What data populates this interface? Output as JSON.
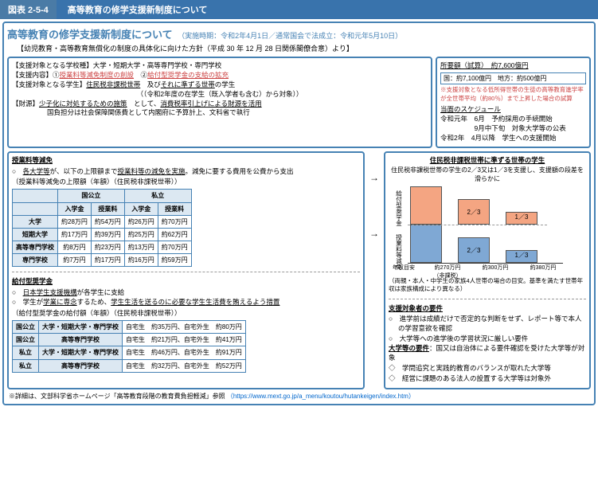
{
  "header": {
    "num": "図表 2-5-4",
    "title": "高等教育の修学支援新制度について"
  },
  "top": {
    "title": "高等教育の修学支援新制度について",
    "sub": "（実施時期：令和2年4月1日／通常国会で法成立：令和元年5月10日）",
    "note": "【幼児教育・高等教育無償化の制度の具体化に向けた方針（平成 30 年 12 月 28 日関係閣僚合意）より】"
  },
  "b1": {
    "l1a": "【支援対象となる学校種】",
    "l1b": "大学・短期大学・高等専門学校・専門学校",
    "l2a": "【支援内容】",
    "l2b": "①",
    "l2c": "授業料等減免制度の創設",
    "l2d": "　②",
    "l2e": "給付型奨学金の支給の拡充",
    "l3a": "【支援対象となる学生】",
    "l3b": "住民税非課税世帯",
    "l3c": "　及び",
    "l3d": "それに準ずる世帯",
    "l3e": "の学生",
    "l3f": "（（令和2年度の在学生（既入学者も含む）から対象））",
    "l4a": "【財源】",
    "l4b": "少子化に対処するための施策",
    "l4c": "　として、",
    "l4d": "消費税率引上げによる財源を活用",
    "l4e": "国負担分は社会保障関係費として内閣府に予算計上、文科省で執行"
  },
  "b2": {
    "t": "所要額（試算）　約7,600億円",
    "r": "国：約7,100億円　地方：約500億円",
    "star": "※支援対象となる低所得世帯の生徒の高等教育進学率が全世帯平均（約80％）まで上昇した場合の試算",
    "st": "当面のスケジュール",
    "s1": "令和元年　6月　予約採用の手続開始",
    "s2": "　　　　　9月中下旬　対象大学等の公表",
    "s3": "令和2年　4月以降　学生への支援開始"
  },
  "left": {
    "title1": "授業料等減免",
    "i1": "○　各大学等が、以下の上限額まで授業料等の減免を実施。減免に要する費用を公費から支出",
    "tc": "（授業料等減免の上限額（年額）（住民税非課税世帯））",
    "t1": {
      "h": [
        "",
        "国公立",
        "",
        "私立",
        ""
      ],
      "h2": [
        "",
        "入学金",
        "授業料",
        "入学金",
        "授業料"
      ],
      "rows": [
        [
          "大学",
          "約28万円",
          "約54万円",
          "約26万円",
          "約70万円"
        ],
        [
          "短期大学",
          "約17万円",
          "約39万円",
          "約25万円",
          "約62万円"
        ],
        [
          "高等専門学校",
          "約8万円",
          "約23万円",
          "約13万円",
          "約70万円"
        ],
        [
          "専門学校",
          "約7万円",
          "約17万円",
          "約16万円",
          "約59万円"
        ]
      ]
    },
    "title2": "給付型奨学金",
    "i2a": "○　日本学生支援機構が各学生に支給",
    "i2b": "○　学生が学業に専念するため、学生生活を送るのに必要な学生生活費を賄えるよう措置",
    "tc2": "（給付型奨学金の給付額（年額）（住民税非課税世帯））",
    "t2": [
      [
        "国公立",
        "大学・短期大学・専門学校",
        "自宅生　約35万円、自宅外生　約80万円"
      ],
      [
        "国公立",
        "高等専門学校",
        "自宅生　約21万円、自宅外生　約41万円"
      ],
      [
        "私立",
        "大学・短期大学・専門学校",
        "自宅生　約46万円、自宅外生　約91万円"
      ],
      [
        "私立",
        "高等専門学校",
        "自宅生　約32万円、自宅外生　約52万円"
      ]
    ]
  },
  "right": {
    "ct": "住民税非課税世帯に準ずる世帯の学生",
    "cs": "住民税非課税世帯の学生の2／3又は1／3を支援し、支援額の段差を滑らかに",
    "yl1": "給付型奨学金",
    "yl2": "授業料等減免",
    "f23": "2／3",
    "f13": "1／3",
    "x": [
      "年収目安",
      "約270万円\n（非課税）",
      "約300万円",
      "約380万円"
    ],
    "cn": "（両親・本人・中学生の家族4人世帯の場合の目安。基準を満たす世帯年収は家族構成により異なる）",
    "rt": "支援対象者の要件",
    "r1": "○　進学前は成績だけで否定的な判断をせず、レポート等で本人の学習意欲を確認",
    "r2": "○　大学等への進学後の学習状況に厳しい要件",
    "rt2": "大学等の要件",
    "rt2b": "：国又は自治体による要件確認を受けた大学等が対象",
    "r3": "◇　学問追究と実践的教育のバランスが取れた大学等",
    "r4": "◇　経営に課題のある法人の設置する大学等は対象外"
  },
  "foot": {
    "t": "※詳細は、文部科学省ホームページ「高等教育段階の教育費負担軽減」参照",
    "u": "（https://www.mext.go.jp/a_menu/koutou/hutankeigen/index.htm）"
  }
}
